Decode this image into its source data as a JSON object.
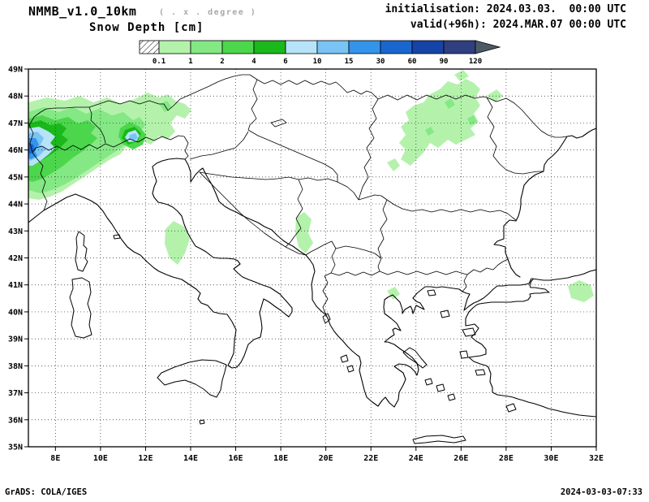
{
  "header": {
    "model": "NMMB_v1.0_10km",
    "grid_note": "( . x . degree )",
    "variable": "Snow Depth [cm]",
    "init": "initialisation: 2024.03.03.  00:00 UTC",
    "valid": "valid(+96h): 2024.MAR.07 00:00 UTC"
  },
  "legend": {
    "boundaries": [
      "0.1",
      "1",
      "2",
      "4",
      "6",
      "10",
      "15",
      "30",
      "60",
      "90",
      "120"
    ],
    "colors": [
      "#b4f2ac",
      "#84e884",
      "#4cd64c",
      "#1ab81a",
      "#b6e3f8",
      "#79c4f5",
      "#3494e9",
      "#1a66cf",
      "#1644a6",
      "#2f3f80"
    ],
    "underflow_color": "#ffffff",
    "overflow_color": "#4c5a66"
  },
  "axes": {
    "lat_labels": [
      "49N",
      "48N",
      "47N",
      "46N",
      "45N",
      "44N",
      "43N",
      "42N",
      "41N",
      "40N",
      "39N",
      "38N",
      "37N",
      "36N",
      "35N"
    ],
    "lon_labels": [
      "8E",
      "10E",
      "12E",
      "14E",
      "16E",
      "18E",
      "20E",
      "22E",
      "24E",
      "26E",
      "28E",
      "30E",
      "32E"
    ]
  },
  "footer": {
    "left": "GrADS: COLA/IGES",
    "right": "2024-03-03-07:33"
  }
}
